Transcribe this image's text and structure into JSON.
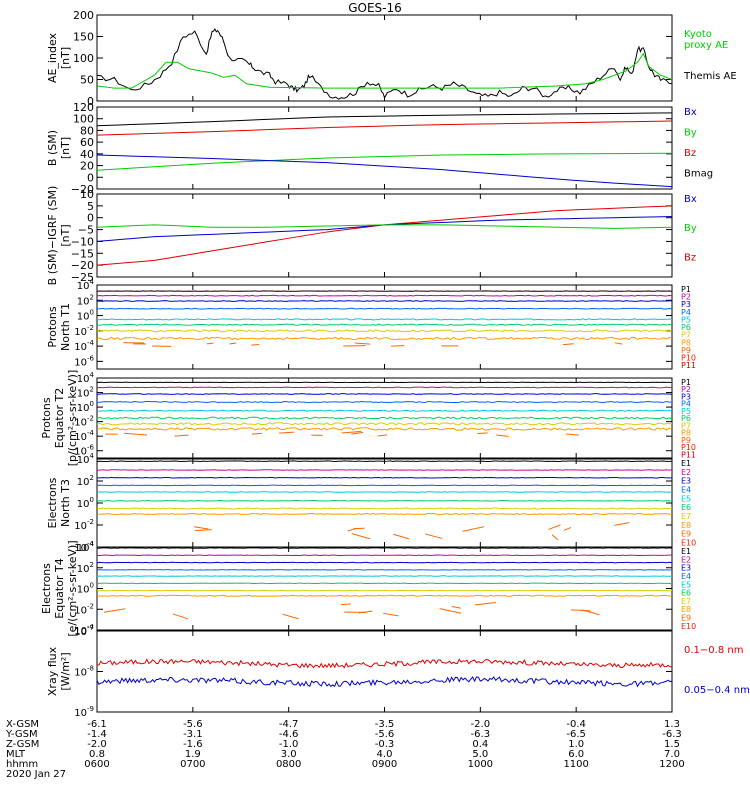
{
  "title": "GOES-16",
  "x_ticks": [
    "0600",
    "0700",
    "0800",
    "0900",
    "1000",
    "1100",
    "1200"
  ],
  "ephemeris": {
    "labels": [
      "X-GSM",
      "Y-GSM",
      "Z-GSM",
      "MLT",
      "hhmm"
    ],
    "date": "2020 Jan 27",
    "rows": [
      [
        "-6.1",
        "-5.6",
        "-4.7",
        "-3.5",
        "-2.0",
        "-0.4",
        "1.3"
      ],
      [
        "-1.4",
        "-3.1",
        "-4.6",
        "-5.6",
        "-6.3",
        "-6.5",
        "-6.3"
      ],
      [
        "-2.0",
        "-1.6",
        "-1.0",
        "-0.3",
        "0.4",
        "1.0",
        "1.5"
      ],
      [
        "0.8",
        "1.9",
        "3.0",
        "4.0",
        "5.0",
        "6.0",
        "7.0"
      ],
      [
        "0600",
        "0700",
        "0800",
        "0900",
        "1000",
        "1100",
        "1200"
      ]
    ]
  },
  "colors": {
    "black": "#000000",
    "red": "#dd0000",
    "green": "#00cc00",
    "blue": "#0000cc",
    "ch": [
      "#000000",
      "#cc0099",
      "#0000dd",
      "#0066ff",
      "#00c8e0",
      "#00cc66",
      "#ddcc00",
      "#ff9900",
      "#ff6600",
      "#ee2200",
      "#cc0000"
    ]
  },
  "chart_data": [
    {
      "type": "line",
      "id": "ae",
      "ylabel": "AE_index\n[nT]",
      "ylim": [
        0,
        200
      ],
      "yticks": [
        "0",
        "50",
        "100",
        "150",
        "200"
      ],
      "legend": [
        {
          "label": "Kyoto\nproxy AE",
          "color": "#00cc00"
        },
        {
          "label": "Themis AE",
          "color": "#000000"
        }
      ],
      "series": [
        {
          "name": "Themis AE",
          "color": "#000000",
          "x": [
            0,
            3,
            6,
            9,
            11,
            13,
            15,
            17,
            19,
            20,
            21,
            22,
            23,
            25,
            26,
            27,
            28,
            30,
            31,
            33,
            34,
            35,
            36,
            37,
            39,
            41,
            43,
            45,
            47,
            49,
            50,
            52,
            54,
            56,
            58,
            60,
            62,
            64,
            66,
            68,
            70,
            72,
            74,
            76,
            78,
            80,
            82,
            84,
            86,
            88,
            90,
            91,
            92,
            93,
            94,
            95,
            96,
            97,
            98,
            100
          ],
          "y": [
            55,
            50,
            25,
            40,
            60,
            90,
            150,
            160,
            110,
            160,
            165,
            140,
            100,
            95,
            90,
            80,
            70,
            60,
            45,
            40,
            30,
            25,
            35,
            60,
            30,
            10,
            10,
            20,
            45,
            35,
            10,
            30,
            15,
            25,
            35,
            30,
            40,
            30,
            15,
            10,
            20,
            10,
            30,
            30,
            10,
            25,
            30,
            20,
            40,
            60,
            80,
            50,
            80,
            60,
            120,
            120,
            80,
            60,
            50,
            40
          ]
        },
        {
          "name": "Kyoto proxy AE",
          "color": "#00cc00",
          "x": [
            0,
            3,
            6,
            10,
            12,
            14,
            16,
            18,
            20,
            22,
            24,
            26,
            30,
            40,
            50,
            60,
            70,
            80,
            85,
            88,
            90,
            92,
            94,
            95,
            96,
            98,
            100
          ],
          "y": [
            35,
            30,
            30,
            60,
            90,
            90,
            75,
            70,
            65,
            55,
            60,
            40,
            32,
            30,
            30,
            30,
            30,
            35,
            40,
            50,
            60,
            70,
            90,
            110,
            80,
            60,
            50
          ]
        }
      ]
    },
    {
      "type": "line",
      "id": "bsm",
      "ylabel": "B (SM)\n[nT]",
      "ylim": [
        -20,
        120
      ],
      "yticks": [
        "−20",
        "0",
        "20",
        "40",
        "60",
        "80",
        "100",
        "120"
      ],
      "legend": [
        {
          "label": "Bx",
          "color": "#0000cc"
        },
        {
          "label": "By",
          "color": "#00cc00"
        },
        {
          "label": "Bz",
          "color": "#dd0000"
        },
        {
          "label": "Bmag",
          "color": "#000000"
        }
      ],
      "series": [
        {
          "name": "Bmag",
          "color": "#000000",
          "x": [
            0,
            20,
            40,
            60,
            80,
            100
          ],
          "y": [
            88,
            95,
            103,
            106,
            108,
            110
          ]
        },
        {
          "name": "Bz",
          "color": "#dd0000",
          "x": [
            0,
            20,
            40,
            60,
            80,
            100
          ],
          "y": [
            72,
            78,
            85,
            90,
            93,
            96
          ]
        },
        {
          "name": "By",
          "color": "#00cc00",
          "x": [
            0,
            20,
            40,
            60,
            80,
            100
          ],
          "y": [
            12,
            24,
            33,
            38,
            40,
            41
          ]
        },
        {
          "name": "Bx",
          "color": "#0000cc",
          "x": [
            0,
            20,
            40,
            60,
            70,
            80,
            90,
            100
          ],
          "y": [
            38,
            32,
            25,
            13,
            5,
            -3,
            -10,
            -16
          ]
        }
      ]
    },
    {
      "type": "line",
      "id": "dbsm",
      "ylabel": "B (SM)−IGRF (SM)\n[nT]",
      "ylim": [
        -25,
        10
      ],
      "yticks": [
        "−25",
        "−20",
        "−15",
        "−10",
        "−5",
        "0",
        "5",
        "10"
      ],
      "legend": [
        {
          "label": "Bx",
          "color": "#0000cc"
        },
        {
          "label": "By",
          "color": "#00cc00"
        },
        {
          "label": "Bz",
          "color": "#dd0000"
        }
      ],
      "series": [
        {
          "name": "Bz",
          "color": "#dd0000",
          "x": [
            0,
            10,
            20,
            30,
            40,
            50,
            60,
            70,
            80,
            90,
            100
          ],
          "y": [
            -20,
            -18,
            -14,
            -10,
            -6,
            -3,
            -1,
            1,
            3,
            4,
            5
          ]
        },
        {
          "name": "Bx",
          "color": "#0000cc",
          "x": [
            0,
            10,
            20,
            30,
            40,
            50,
            60,
            70,
            80,
            90,
            100
          ],
          "y": [
            -10,
            -8,
            -7,
            -6,
            -5,
            -3,
            -2,
            -1,
            -0.5,
            0,
            0.5
          ]
        },
        {
          "name": "By",
          "color": "#00cc00",
          "x": [
            0,
            10,
            20,
            30,
            40,
            50,
            60,
            70,
            80,
            90,
            100
          ],
          "y": [
            -4,
            -3,
            -4,
            -4,
            -3.5,
            -3,
            -3,
            -3.5,
            -4,
            -4.5,
            -4
          ]
        }
      ]
    },
    {
      "type": "line",
      "id": "p_north",
      "ylabel": "Protons\nNorth T1",
      "ylim": [
        -7,
        4
      ],
      "yticks": [
        "10^-6",
        "10^-4",
        "10^-2",
        "10^0",
        "10^2",
        "10^4"
      ],
      "channels": [
        "P1",
        "P2",
        "P3",
        "P4",
        "P5",
        "P6",
        "P7",
        "P8",
        "P9",
        "P10",
        "P11"
      ],
      "levels": [
        3.2,
        2.6,
        1.9,
        0.9,
        -0.5,
        -1.2,
        -2.0,
        -3.0,
        -3.8,
        null,
        null
      ],
      "noise": [
        0.05,
        0.1,
        0.1,
        0.1,
        0.15,
        0.15,
        0.25,
        0.3,
        0.5,
        0,
        0
      ]
    },
    {
      "type": "line",
      "id": "p_eq",
      "ylabel": "Protons\nEquator T2\n[p/(cm²-s-sr-keV)]",
      "ylim": [
        -7,
        4
      ],
      "yticks": [
        "10^-6",
        "10^-4",
        "10^-2",
        "10^0",
        "10^2",
        "10^4"
      ],
      "channels": [
        "P1",
        "P2",
        "P3",
        "P4",
        "P5",
        "P6",
        "P7",
        "P8",
        "P9",
        "P10",
        "P11"
      ],
      "levels": [
        3.4,
        2.7,
        1.8,
        0.7,
        -0.5,
        -1.5,
        -2.3,
        -3.0,
        -3.8,
        null,
        null
      ],
      "noise": [
        0.05,
        0.1,
        0.1,
        0.15,
        0.15,
        0.25,
        0.3,
        0.35,
        0.5,
        0,
        0
      ]
    },
    {
      "type": "line",
      "id": "e_north",
      "ylabel": "Electrons\nNorth T3",
      "ylim": [
        -4,
        4
      ],
      "yticks": [
        "10^-4",
        "10^-2",
        "10^0",
        "10^2",
        "10^4"
      ],
      "channels": [
        "E1",
        "E2",
        "E3",
        "E4",
        "E5",
        "E6",
        "E7",
        "E8",
        "E9",
        "E10"
      ],
      "levels": [
        3.8,
        3.0,
        2.3,
        1.6,
        1.0,
        0.2,
        -0.5,
        -1.0,
        -2.5,
        null
      ],
      "noise": [
        0.05,
        0.05,
        0.05,
        0.05,
        0.05,
        0.05,
        0.1,
        0.1,
        1.0,
        0
      ]
    },
    {
      "type": "line",
      "id": "e_eq",
      "ylabel": "Electrons\nEquator T4\n[e/(cm²-s-sr-keV)]",
      "ylim": [
        -4,
        4
      ],
      "yticks": [
        "10^-4",
        "10^-2",
        "10^0",
        "10^2",
        "10^4"
      ],
      "channels": [
        "E1",
        "E2",
        "E3",
        "E4",
        "E5",
        "E6",
        "E7",
        "E8",
        "E9",
        "E10"
      ],
      "levels": [
        3.9,
        3.2,
        2.5,
        1.8,
        1.2,
        0.5,
        -0.2,
        -0.7,
        -2.0,
        null
      ],
      "noise": [
        0.05,
        0.05,
        0.05,
        0.05,
        0.05,
        0.05,
        0.05,
        0.1,
        1.0,
        0
      ]
    },
    {
      "type": "line",
      "id": "xray",
      "ylabel": "Xray flux\n[W/m²]",
      "ylim": [
        -9,
        -7
      ],
      "yticks": [
        "10^-9",
        "10^-8",
        "10^-7"
      ],
      "legend": [
        {
          "label": "0.1−0.8 nm",
          "color": "#dd0000"
        },
        {
          "label": "0.05−0.4 nm",
          "color": "#0000cc"
        }
      ],
      "series": [
        {
          "name": "0.1−0.8 nm",
          "color": "#dd0000",
          "level": -7.8,
          "noise": 0.06
        },
        {
          "name": "0.05−0.4 nm",
          "color": "#0000cc",
          "level": -8.25,
          "noise": 0.07
        }
      ]
    }
  ]
}
